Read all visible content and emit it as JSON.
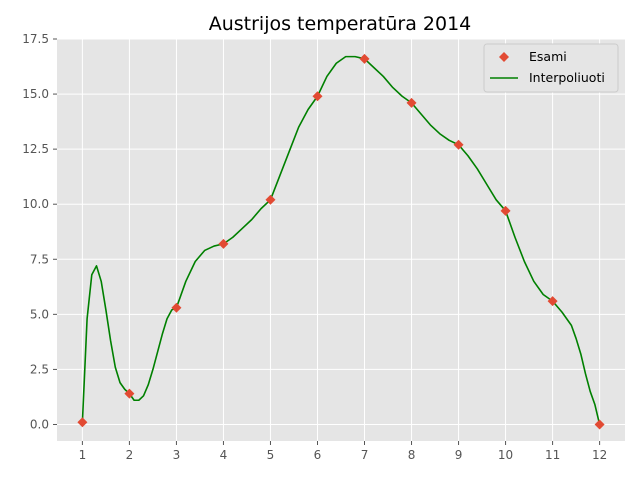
{
  "chart_data": {
    "type": "line",
    "title": "Austrijos temperatūra 2014",
    "xlabel": "",
    "ylabel": "",
    "x_ticks": [
      "1",
      "2",
      "3",
      "4",
      "5",
      "6",
      "7",
      "8",
      "9",
      "10",
      "11",
      "12"
    ],
    "y_ticks": [
      "0.0",
      "2.5",
      "5.0",
      "7.5",
      "10.0",
      "12.5",
      "15.0",
      "17.5"
    ],
    "xlim": [
      0.46,
      12.54
    ],
    "ylim": [
      -0.75,
      17.5
    ],
    "grid": true,
    "legend_position": "top-right",
    "series": [
      {
        "name": "Esami",
        "kind": "scatter",
        "marker": "diamond",
        "color": "#e24a33",
        "x": [
          1,
          2,
          3,
          4,
          5,
          6,
          7,
          8,
          9,
          10,
          11,
          12
        ],
        "y": [
          0.1,
          1.4,
          5.3,
          8.2,
          10.2,
          14.9,
          16.6,
          14.6,
          12.7,
          9.7,
          5.6,
          0.0
        ]
      },
      {
        "name": "Interpoliuoti",
        "kind": "line",
        "color": "#008000",
        "x": [
          1,
          1.1,
          1.2,
          1.3,
          1.4,
          1.5,
          1.6,
          1.7,
          1.8,
          1.9,
          2,
          2.1,
          2.2,
          2.3,
          2.4,
          2.5,
          2.6,
          2.7,
          2.8,
          2.9,
          3,
          3.2,
          3.4,
          3.6,
          3.8,
          4,
          4.2,
          4.4,
          4.6,
          4.8,
          5,
          5.2,
          5.4,
          5.6,
          5.8,
          6,
          6.2,
          6.4,
          6.6,
          6.8,
          7,
          7.2,
          7.4,
          7.6,
          7.8,
          8,
          8.2,
          8.4,
          8.6,
          8.8,
          9,
          9.2,
          9.4,
          9.6,
          9.8,
          10,
          10.2,
          10.4,
          10.6,
          10.8,
          11,
          11.2,
          11.4,
          11.5,
          11.6,
          11.7,
          11.8,
          11.9,
          12
        ],
        "y": [
          0.1,
          4.8,
          6.8,
          7.2,
          6.5,
          5.2,
          3.8,
          2.6,
          1.9,
          1.6,
          1.4,
          1.1,
          1.1,
          1.3,
          1.8,
          2.5,
          3.3,
          4.1,
          4.8,
          5.2,
          5.3,
          6.5,
          7.4,
          7.9,
          8.1,
          8.2,
          8.5,
          8.9,
          9.3,
          9.8,
          10.2,
          11.3,
          12.4,
          13.5,
          14.3,
          14.9,
          15.8,
          16.4,
          16.7,
          16.7,
          16.6,
          16.2,
          15.8,
          15.3,
          14.9,
          14.6,
          14.1,
          13.6,
          13.2,
          12.9,
          12.7,
          12.2,
          11.6,
          10.9,
          10.2,
          9.7,
          8.5,
          7.4,
          6.5,
          5.9,
          5.6,
          5.1,
          4.5,
          3.9,
          3.2,
          2.3,
          1.5,
          0.9,
          0.0
        ]
      }
    ]
  }
}
